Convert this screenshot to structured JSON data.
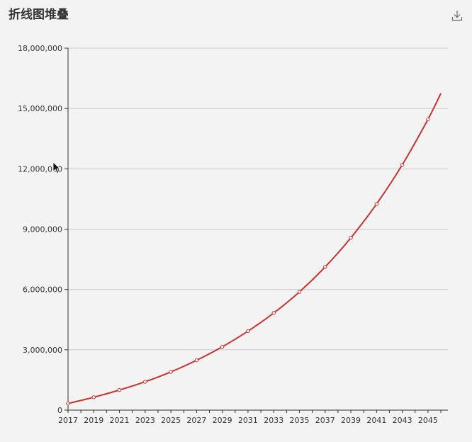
{
  "page": {
    "title": "折线图堆叠"
  },
  "toolbar": {
    "download_icon": "download-icon"
  },
  "colors": {
    "series_line": "#c23531",
    "point_fill": "#ffffff",
    "axis": "#333333",
    "grid": "#cccccc",
    "background": "#f3f3f3"
  },
  "chart_data": {
    "type": "line",
    "title": "折线图堆叠",
    "x": [
      "2017",
      "2018",
      "2019",
      "2020",
      "2021",
      "2022",
      "2023",
      "2024",
      "2025",
      "2026",
      "2027",
      "2028",
      "2029",
      "2030",
      "2031",
      "2032",
      "2033",
      "2034",
      "2035",
      "2036",
      "2037",
      "2038",
      "2039",
      "2040",
      "2041",
      "2042",
      "2043",
      "2044",
      "2045",
      "2046"
    ],
    "x_tick_labels": [
      "2017",
      "2019",
      "2021",
      "2023",
      "2025",
      "2027",
      "2029",
      "2031",
      "2033",
      "2035",
      "2037",
      "2039",
      "2041",
      "2043",
      "2045"
    ],
    "series": [
      {
        "values": [
          330000,
          640000,
          1000000,
          1410000,
          1900000,
          2480000,
          3150000,
          3930000,
          4830000,
          5880000,
          7120000,
          8570000,
          10250000,
          12200000,
          14460000,
          15750000
        ],
        "x_values": [
          "2017",
          "2019",
          "2021",
          "2023",
          "2025",
          "2027",
          "2029",
          "2031",
          "2033",
          "2035",
          "2037",
          "2039",
          "2041",
          "2043",
          "2045",
          "2046"
        ],
        "smooth": true,
        "marker_years": [
          "2017",
          "2019",
          "2021",
          "2023",
          "2025",
          "2027",
          "2029",
          "2031",
          "2033",
          "2035",
          "2037",
          "2039",
          "2041",
          "2043",
          "2045"
        ]
      }
    ],
    "ylim": [
      0,
      18000000
    ],
    "y_ticks": [
      0,
      3000000,
      6000000,
      9000000,
      12000000,
      15000000,
      18000000
    ],
    "y_tick_labels": [
      "0",
      "3,000,000",
      "6,000,000",
      "9,000,000",
      "12,000,000",
      "15,000,000",
      "18,000,000"
    ],
    "grid": "horizontal",
    "legend": "none",
    "xlabel": "",
    "ylabel": ""
  }
}
